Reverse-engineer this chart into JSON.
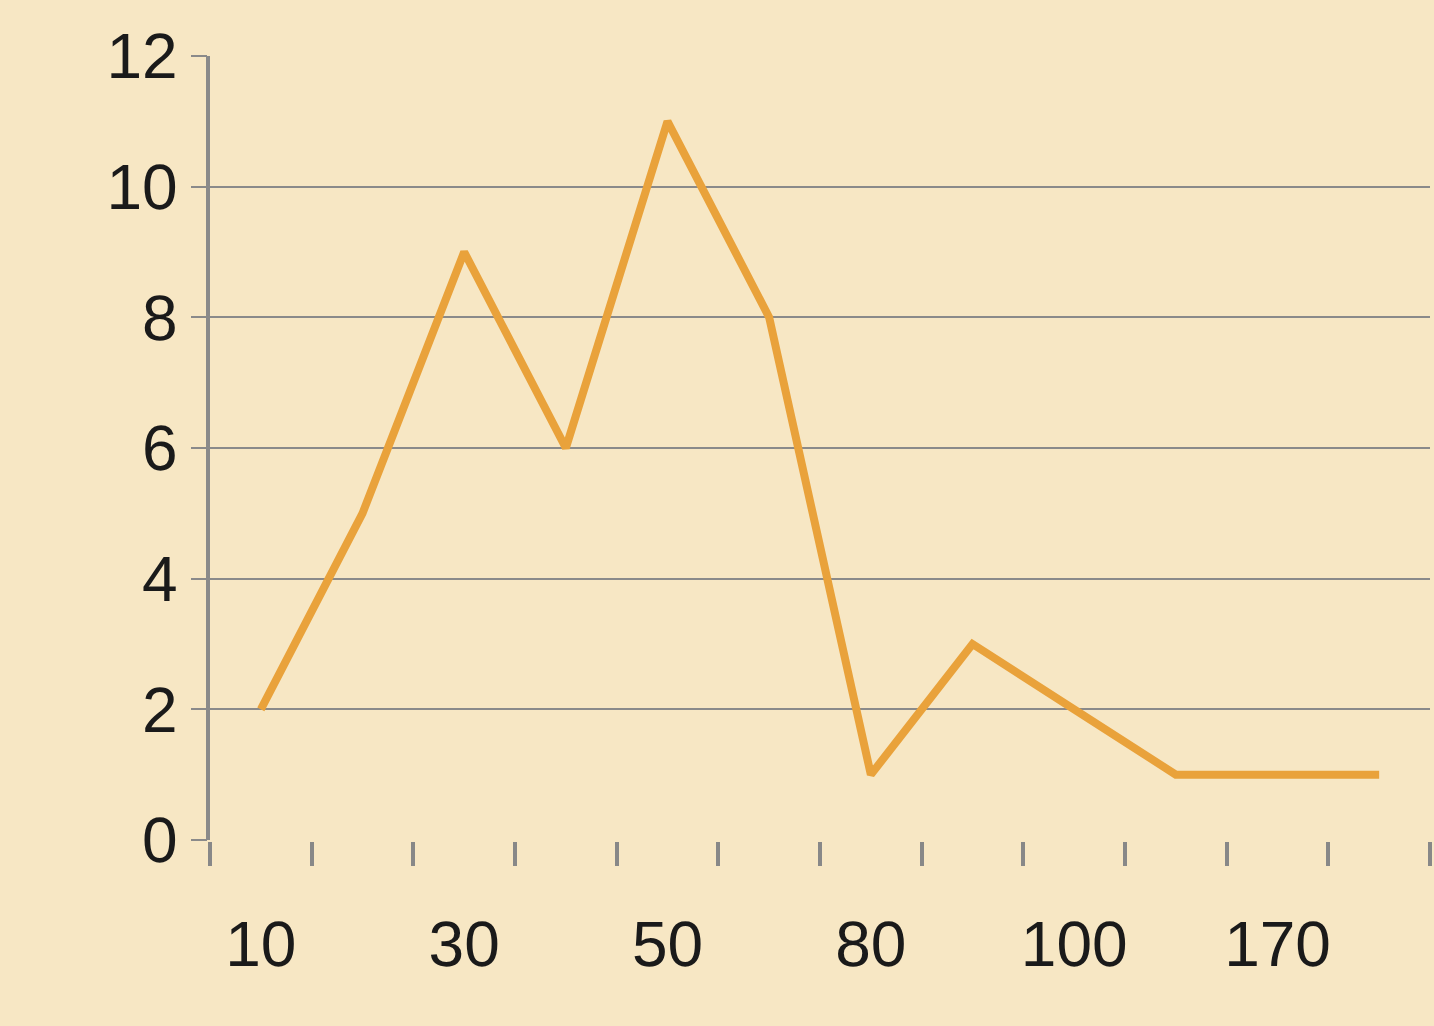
{
  "chart_data": {
    "type": "line",
    "categories": [
      "10",
      null,
      "30",
      null,
      "50",
      null,
      "80",
      null,
      "100",
      null,
      "170",
      null
    ],
    "series": [
      {
        "color": "#e9a23b",
        "values": [
          2,
          5,
          9,
          6,
          11,
          8,
          1,
          3,
          2,
          1,
          1,
          1
        ]
      }
    ],
    "ylim": [
      0,
      12
    ],
    "yticks": [
      0,
      2,
      4,
      6,
      8,
      10,
      12
    ],
    "grid": "y",
    "marker": "none",
    "line_style": "solid"
  }
}
